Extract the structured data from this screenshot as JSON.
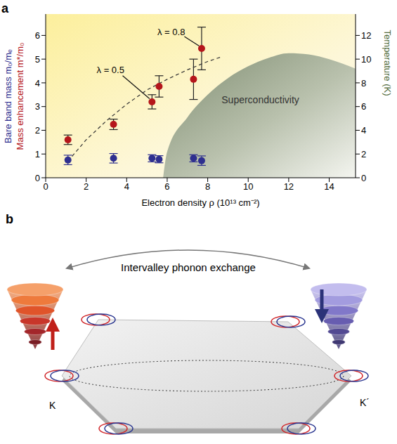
{
  "chart_data": {
    "type": "scatter",
    "panel": "a",
    "x_label": "Electron density ρ (10¹³ cm⁻²)",
    "y2_label": "Temperature (K)",
    "xlim": [
      0,
      15.3
    ],
    "xticks": [
      0,
      2,
      4,
      6,
      8,
      10,
      12,
      14
    ],
    "ylim": [
      0,
      6.9
    ],
    "yticks": [
      0,
      1,
      2,
      3,
      4,
      5,
      6
    ],
    "y2lim": [
      0,
      13.8
    ],
    "y2ticks": [
      0,
      2,
      4,
      6,
      8,
      10,
      12
    ],
    "series": [
      {
        "name": "Bare band mass m₀/mₑ",
        "color": "#2e2f8f",
        "marker": "circle",
        "x": [
          1.1,
          3.35,
          5.25,
          5.6,
          7.3,
          7.7
        ],
        "values": [
          0.75,
          0.82,
          0.82,
          0.78,
          0.82,
          0.72
        ],
        "errors": [
          0.2,
          0.2,
          0.15,
          0.15,
          0.15,
          0.2
        ]
      },
      {
        "name": "Mass enhancement m*/m₀",
        "color": "#b5161b",
        "marker": "circle",
        "x": [
          1.1,
          3.35,
          5.25,
          5.6,
          7.3,
          7.7
        ],
        "values": [
          1.6,
          2.25,
          3.2,
          3.85,
          4.15,
          5.45
        ],
        "errors": [
          0.2,
          0.22,
          0.3,
          0.45,
          0.85,
          0.9
        ]
      },
      {
        "type": "line",
        "line_style": "dashed",
        "color": "#333333",
        "x": [
          1.1,
          2,
          3,
          4,
          5,
          6,
          7,
          8,
          8.7
        ],
        "values": [
          0.7,
          1.6,
          2.4,
          3.1,
          3.7,
          4.15,
          4.55,
          4.9,
          5.1
        ]
      },
      {
        "name": "Superconductivity",
        "type": "area",
        "axis": "y2",
        "color": "#7e8c70",
        "x": [
          5.8,
          6,
          7,
          8,
          9,
          10,
          11,
          12,
          13,
          14,
          15.3
        ],
        "values": [
          0,
          2.2,
          5.1,
          7,
          8.4,
          9.4,
          10.1,
          10.5,
          10.4,
          10.0,
          9.2
        ]
      }
    ],
    "annotations": [
      {
        "text": "λ = 0.5",
        "x": 5.25,
        "y": 3.2
      },
      {
        "text": "λ = 0.8",
        "x": 7.7,
        "y": 5.45
      }
    ]
  },
  "diagram": {
    "panel": "b",
    "arrow_label": "Intervalley phonon exchange",
    "valleys": [
      "K",
      "K´"
    ]
  }
}
